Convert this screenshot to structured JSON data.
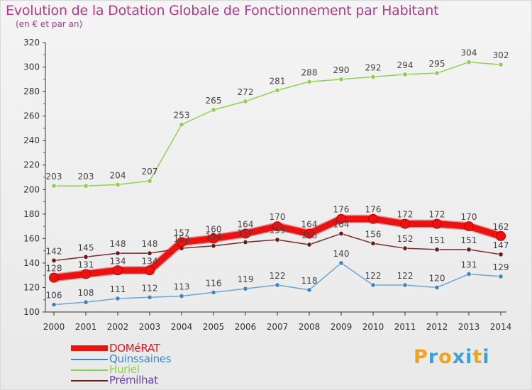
{
  "title": "Evolution de la Dotation Globale de Fonctionnement par Habitant",
  "subtitle": "(en € et par an)",
  "logo": {
    "text": "Proxiti"
  },
  "colors": {
    "title": "#b33a8a",
    "axis": "#333333",
    "dashes": "#cc3333"
  },
  "chart_data": {
    "type": "line",
    "x": [
      "2000",
      "2001",
      "2002",
      "2003",
      "2004",
      "2005",
      "2006",
      "2007",
      "2008",
      "2009",
      "2010",
      "2011",
      "2012",
      "2013",
      "2014"
    ],
    "ylim": [
      100,
      320
    ],
    "yticks": [
      100,
      120,
      140,
      160,
      180,
      200,
      220,
      240,
      260,
      280,
      300,
      320
    ],
    "grid": false,
    "legend_position": "bottom-left",
    "series": [
      {
        "name": "Huriel",
        "color": "#8fd14f",
        "point_color": "#8fd14f",
        "values": [
          203,
          203,
          204,
          207,
          253,
          265,
          272,
          281,
          288,
          290,
          292,
          294,
          295,
          304,
          302
        ]
      },
      {
        "name": "Prémilhat",
        "color": "#7a2a2a",
        "point_color": "#6b1b1b",
        "values": [
          142,
          145,
          148,
          148,
          152,
          154,
          157,
          159,
          155,
          164,
          156,
          152,
          151,
          151,
          147
        ]
      },
      {
        "name": "DOMéRAT",
        "color": "#ee1111",
        "point_color": "#ee1111",
        "values": [
          128,
          131,
          134,
          134,
          157,
          160,
          164,
          170,
          164,
          176,
          176,
          172,
          172,
          170,
          162
        ]
      },
      {
        "name": "Quinssaines",
        "color": "#6aa5d6",
        "point_color": "#3d86c6",
        "values": [
          106,
          108,
          111,
          112,
          113,
          116,
          119,
          122,
          118,
          140,
          122,
          122,
          120,
          131,
          129
        ]
      }
    ]
  },
  "legend": [
    {
      "label": "DOMéRAT",
      "color": "#ee1111"
    },
    {
      "label": "Quinssaines",
      "color": "#3d86c6"
    },
    {
      "label": "Huriel",
      "color": "#8fd14f"
    },
    {
      "label": "Prémilhat",
      "color": "#6b1b1b"
    }
  ]
}
